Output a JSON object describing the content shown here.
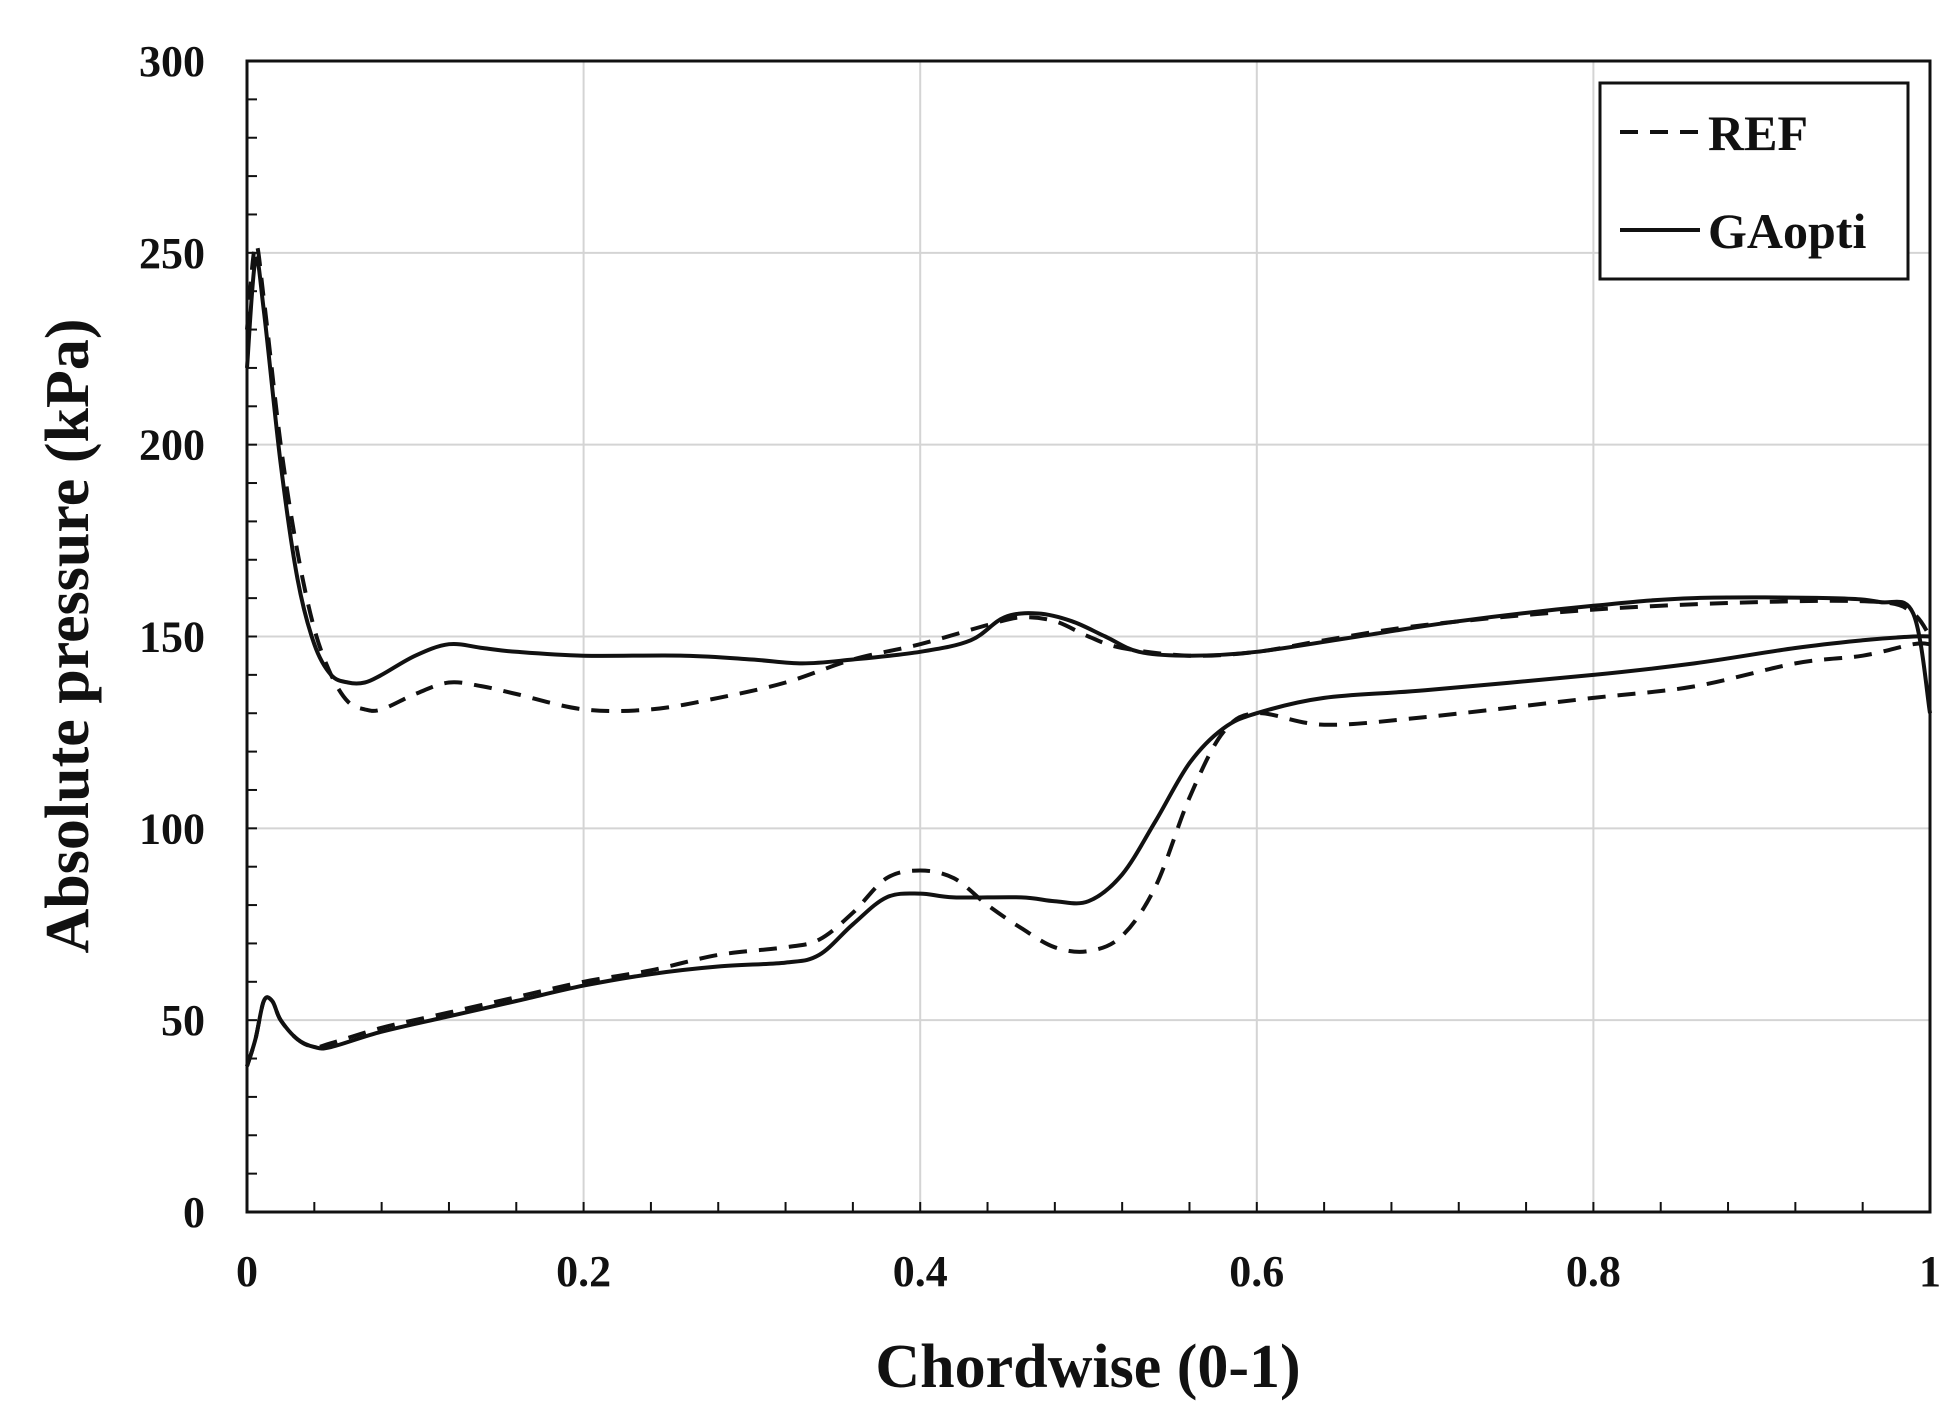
{
  "chart_data": {
    "type": "line",
    "title": "",
    "xlabel": "Chordwise (0-1)",
    "ylabel": "Absolute pressure (kPa)",
    "xlim": [
      0,
      1
    ],
    "ylim": [
      0,
      300
    ],
    "xticks": [
      0,
      0.2,
      0.4,
      0.6,
      0.8,
      1
    ],
    "xtick_labels": [
      "0",
      "0.2",
      "0.4",
      "0.6",
      "0.8",
      "1"
    ],
    "yticks": [
      0,
      50,
      100,
      150,
      200,
      250,
      300
    ],
    "ytick_labels": [
      "0",
      "50",
      "100",
      "150",
      "200",
      "250",
      "300"
    ],
    "grid": true,
    "legend_position": "top-right",
    "series": [
      {
        "name": "REF",
        "style": "dashed",
        "color": "#111111",
        "upper": [
          [
            0,
            230
          ],
          [
            0.005,
            252
          ],
          [
            0.01,
            238
          ],
          [
            0.02,
            200
          ],
          [
            0.03,
            172
          ],
          [
            0.04,
            152
          ],
          [
            0.05,
            140
          ],
          [
            0.06,
            133
          ],
          [
            0.07,
            131
          ],
          [
            0.08,
            131
          ],
          [
            0.1,
            135
          ],
          [
            0.12,
            138
          ],
          [
            0.14,
            137
          ],
          [
            0.16,
            135
          ],
          [
            0.2,
            131
          ],
          [
            0.24,
            131
          ],
          [
            0.28,
            134
          ],
          [
            0.32,
            138
          ],
          [
            0.36,
            144
          ],
          [
            0.4,
            148
          ],
          [
            0.44,
            153
          ],
          [
            0.46,
            155
          ],
          [
            0.48,
            154
          ],
          [
            0.5,
            150
          ],
          [
            0.52,
            147
          ],
          [
            0.56,
            145
          ],
          [
            0.6,
            146
          ],
          [
            0.64,
            149
          ],
          [
            0.7,
            153
          ],
          [
            0.8,
            157
          ],
          [
            0.9,
            159
          ],
          [
            0.97,
            159
          ],
          [
            0.99,
            156
          ],
          [
            1,
            150
          ]
        ],
        "lower": [
          [
            0,
            38
          ],
          [
            0.005,
            45
          ],
          [
            0.01,
            55
          ],
          [
            0.015,
            55
          ],
          [
            0.02,
            50
          ],
          [
            0.03,
            45
          ],
          [
            0.04,
            43
          ],
          [
            0.05,
            44
          ],
          [
            0.08,
            48
          ],
          [
            0.12,
            52
          ],
          [
            0.16,
            56
          ],
          [
            0.2,
            60
          ],
          [
            0.24,
            63
          ],
          [
            0.28,
            67
          ],
          [
            0.32,
            69
          ],
          [
            0.34,
            71
          ],
          [
            0.36,
            78
          ],
          [
            0.38,
            87
          ],
          [
            0.4,
            89
          ],
          [
            0.42,
            87
          ],
          [
            0.44,
            80
          ],
          [
            0.46,
            74
          ],
          [
            0.48,
            69
          ],
          [
            0.5,
            68
          ],
          [
            0.52,
            72
          ],
          [
            0.54,
            85
          ],
          [
            0.56,
            108
          ],
          [
            0.58,
            125
          ],
          [
            0.6,
            130
          ],
          [
            0.64,
            127
          ],
          [
            0.7,
            129
          ],
          [
            0.8,
            134
          ],
          [
            0.86,
            137
          ],
          [
            0.92,
            143
          ],
          [
            0.96,
            145
          ],
          [
            0.99,
            148
          ],
          [
            1,
            148
          ]
        ]
      },
      {
        "name": "GAopti",
        "style": "solid",
        "color": "#111111",
        "upper": [
          [
            0,
            220
          ],
          [
            0.005,
            248
          ],
          [
            0.01,
            235
          ],
          [
            0.02,
            195
          ],
          [
            0.03,
            165
          ],
          [
            0.04,
            148
          ],
          [
            0.05,
            140
          ],
          [
            0.06,
            138
          ],
          [
            0.07,
            138
          ],
          [
            0.08,
            140
          ],
          [
            0.1,
            145
          ],
          [
            0.12,
            148
          ],
          [
            0.14,
            147
          ],
          [
            0.16,
            146
          ],
          [
            0.2,
            145
          ],
          [
            0.26,
            145
          ],
          [
            0.3,
            144
          ],
          [
            0.33,
            143
          ],
          [
            0.36,
            144
          ],
          [
            0.4,
            146
          ],
          [
            0.43,
            149
          ],
          [
            0.45,
            155
          ],
          [
            0.47,
            156
          ],
          [
            0.49,
            154
          ],
          [
            0.51,
            150
          ],
          [
            0.53,
            146
          ],
          [
            0.56,
            145
          ],
          [
            0.6,
            146
          ],
          [
            0.66,
            150
          ],
          [
            0.72,
            154
          ],
          [
            0.8,
            158
          ],
          [
            0.86,
            160
          ],
          [
            0.94,
            160
          ],
          [
            0.97,
            159
          ],
          [
            0.99,
            156
          ],
          [
            1,
            130
          ]
        ],
        "lower": [
          [
            0,
            38
          ],
          [
            0.005,
            45
          ],
          [
            0.01,
            55
          ],
          [
            0.015,
            55
          ],
          [
            0.02,
            50
          ],
          [
            0.03,
            45
          ],
          [
            0.04,
            43
          ],
          [
            0.05,
            43
          ],
          [
            0.08,
            47
          ],
          [
            0.12,
            51
          ],
          [
            0.16,
            55
          ],
          [
            0.2,
            59
          ],
          [
            0.24,
            62
          ],
          [
            0.28,
            64
          ],
          [
            0.32,
            65
          ],
          [
            0.34,
            67
          ],
          [
            0.36,
            75
          ],
          [
            0.38,
            82
          ],
          [
            0.4,
            83
          ],
          [
            0.42,
            82
          ],
          [
            0.46,
            82
          ],
          [
            0.48,
            81
          ],
          [
            0.5,
            81
          ],
          [
            0.52,
            88
          ],
          [
            0.54,
            102
          ],
          [
            0.56,
            117
          ],
          [
            0.58,
            126
          ],
          [
            0.6,
            130
          ],
          [
            0.64,
            134
          ],
          [
            0.7,
            136
          ],
          [
            0.8,
            140
          ],
          [
            0.86,
            143
          ],
          [
            0.92,
            147
          ],
          [
            0.96,
            149
          ],
          [
            0.99,
            150
          ],
          [
            1,
            150
          ]
        ]
      }
    ]
  }
}
